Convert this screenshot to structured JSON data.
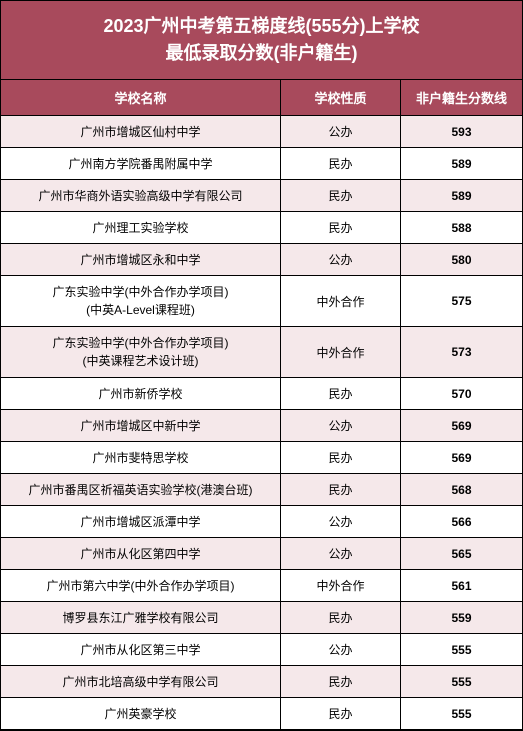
{
  "header": {
    "line1": "2023广州中考第五梯度线(555分)上学校",
    "line2": "最低录取分数(非户籍生)"
  },
  "columns": {
    "name": "学校名称",
    "type": "学校性质",
    "score": "非户籍生分数线"
  },
  "colors": {
    "header_bg": "#a84a5c",
    "header_text": "#ffffff",
    "row_odd": "#f5e8ea",
    "row_even": "#ffffff",
    "border": "#000000"
  },
  "rows": [
    {
      "name": "广州市增城区仙村中学",
      "type": "公办",
      "score": "593"
    },
    {
      "name": "广州南方学院番禺附属中学",
      "type": "民办",
      "score": "589"
    },
    {
      "name": "广州市华商外语实验高级中学有限公司",
      "type": "民办",
      "score": "589"
    },
    {
      "name": "广州理工实验学校",
      "type": "民办",
      "score": "588"
    },
    {
      "name": "广州市增城区永和中学",
      "type": "公办",
      "score": "580"
    },
    {
      "name": "广东实验中学(中外合作办学项目)",
      "name2": "(中英A-Level课程班)",
      "type": "中外合作",
      "score": "575"
    },
    {
      "name": "广东实验中学(中外合作办学项目)",
      "name2": "(中英课程艺术设计班)",
      "type": "中外合作",
      "score": "573"
    },
    {
      "name": "广州市新侨学校",
      "type": "民办",
      "score": "570"
    },
    {
      "name": "广州市增城区中新中学",
      "type": "公办",
      "score": "569"
    },
    {
      "name": "广州市斐特思学校",
      "type": "民办",
      "score": "569"
    },
    {
      "name": "广州市番禺区祈福英语实验学校(港澳台班)",
      "type": "民办",
      "score": "568"
    },
    {
      "name": "广州市增城区派潭中学",
      "type": "公办",
      "score": "566"
    },
    {
      "name": "广州市从化区第四中学",
      "type": "公办",
      "score": "565"
    },
    {
      "name": "广州市第六中学(中外合作办学项目)",
      "type": "中外合作",
      "score": "561"
    },
    {
      "name": "博罗县东江广雅学校有限公司",
      "type": "民办",
      "score": "559"
    },
    {
      "name": "广州市从化区第三中学",
      "type": "公办",
      "score": "555"
    },
    {
      "name": "广州市北培高级中学有限公司",
      "type": "民办",
      "score": "555"
    },
    {
      "name": "广州英豪学校",
      "type": "民办",
      "score": "555"
    }
  ]
}
